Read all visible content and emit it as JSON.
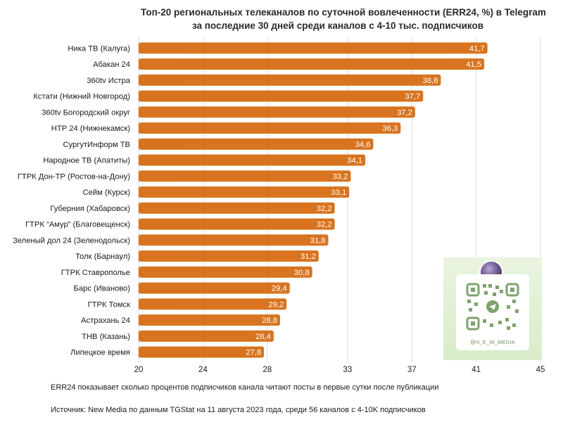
{
  "chart_data": {
    "type": "bar",
    "orientation": "horizontal",
    "title": "Топ-20 региональных телеканалов по суточной вовлеченности (ERR24, %) в Telegram",
    "subtitle": "за последние 30 дней среди каналов с 4-10 тыс. подписчиков",
    "categories": [
      "Ника ТВ (Калуга)",
      "Абакан 24",
      "360tv Истра",
      "Кстати (Нижний Новгород)",
      "360tv Богородский округ",
      "НТР 24 (Нижнекамск)",
      "СургутИнформ ТВ",
      "Народное ТВ (Апатиты)",
      "ГТРК Дон-ТР (Ростов-на-Дону)",
      "Сейм (Курск)",
      "Губерния (Хабаровск)",
      "ГТРК “Амур” (Благовещенск)",
      "Зеленый дол 24 (Зеленодольск)",
      "Толк (Барнаул)",
      "ГТРК Ставрополье",
      "Барс (Иваново)",
      "ГТРК Томск",
      "Астрахань 24",
      "ТНВ (Казань)",
      "Липецкое время"
    ],
    "values": [
      41.7,
      41.5,
      38.8,
      37.7,
      37.2,
      36.3,
      34.6,
      34.1,
      33.2,
      33.1,
      32.2,
      32.2,
      31.8,
      31.2,
      30.8,
      29.4,
      29.2,
      28.8,
      28.4,
      27.8
    ],
    "value_labels": [
      "41,7",
      "41,5",
      "38,8",
      "37,7",
      "37,2",
      "36,3",
      "34,6",
      "34,1",
      "33,2",
      "33,1",
      "32,2",
      "32,2",
      "31,8",
      "31,2",
      "30,8",
      "29,4",
      "29,2",
      "28,8",
      "28,4",
      "27,8"
    ],
    "x_ticks": [
      "20",
      "24",
      "28",
      "33",
      "37",
      "41",
      "45"
    ],
    "xlim": [
      20,
      45
    ],
    "xlabel": "",
    "ylabel": "",
    "grid": "vertical",
    "bar_color": "#d8741f"
  },
  "watermark": {
    "handle": "@N_E_W_MEDIA"
  },
  "footer": {
    "note": "ERR24 показывает сколько процентов подписчиков канала читают посты в первые сутки после публикации",
    "source": "Источник: New Media по данным TGStat на 11 августа 2023 года, среди 56 каналов с 4-10K подписчиков"
  }
}
